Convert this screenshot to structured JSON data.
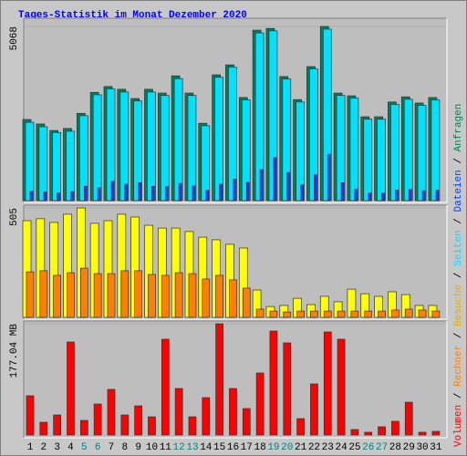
{
  "chart_data": {
    "type": "bar",
    "title": "Tages-Statistik im Monat Dezember 2020",
    "categories": [
      "1",
      "2",
      "3",
      "4",
      "5",
      "6",
      "7",
      "8",
      "9",
      "10",
      "11",
      "12",
      "13",
      "14",
      "15",
      "16",
      "17",
      "18",
      "19",
      "20",
      "21",
      "22",
      "23",
      "24",
      "25",
      "26",
      "27",
      "28",
      "29",
      "30",
      "31"
    ],
    "weekend_indices": [
      4,
      5,
      11,
      12,
      18,
      19,
      25,
      26
    ],
    "weekend_color": "#008080",
    "legend_separator": " / ",
    "panels": [
      {
        "ylim": [
          0,
          5068
        ],
        "yticks": [
          5068
        ],
        "series": [
          {
            "name": "Anfragen",
            "color": "#00805c",
            "values": [
              2360,
              2230,
              2040,
              2100,
              2540,
              3150,
              3320,
              3240,
              2970,
              3240,
              3130,
              3630,
              3130,
              2250,
              3660,
              3950,
              3000,
              4960,
              5010,
              3610,
              2940,
              3900,
              5068,
              3130,
              3050,
              2440,
              2440,
              2870,
              3020,
              2840,
              3000
            ]
          },
          {
            "name": "Dateien",
            "color": "#0040ff",
            "values": [
              280,
              250,
              230,
              260,
              420,
              380,
              560,
              480,
              520,
              420,
              410,
              500,
              430,
              300,
              480,
              620,
              530,
              900,
              1250,
              820,
              460,
              760,
              1350,
              520,
              340,
              230,
              220,
              310,
              330,
              290,
              300
            ]
          },
          {
            "name": "Seiten",
            "color": "#00e0ff",
            "values": [
              2280,
              2150,
              1980,
              2020,
              2470,
              3080,
              3250,
              3160,
              2900,
              3160,
              3060,
              3550,
              3060,
              2180,
              3590,
              3880,
              2930,
              4880,
              4940,
              3540,
              2870,
              3830,
              4990,
              3060,
              2980,
              2370,
              2370,
              2800,
              2950,
              2770,
              2930
            ]
          }
        ]
      },
      {
        "ylim": [
          0,
          505
        ],
        "yticks": [
          505
        ],
        "series": [
          {
            "name": "Besuche",
            "color": "#ffff00",
            "values": [
              446,
              455,
              438,
              476,
              505,
              434,
              446,
              476,
              463,
              425,
              412,
              412,
              396,
              370,
              358,
              337,
              320,
              126,
              50,
              55,
              88,
              59,
              97,
              72,
              130,
              109,
              97,
              118,
              105,
              55,
              55
            ]
          },
          {
            "name": "Rechner",
            "color": "#ff8000",
            "values": [
              210,
              215,
              194,
              206,
              227,
              202,
              202,
              215,
              215,
              198,
              194,
              206,
              202,
              177,
              194,
              173,
              135,
              38,
              29,
              25,
              29,
              29,
              29,
              29,
              29,
              29,
              29,
              34,
              38,
              34,
              29
            ]
          }
        ]
      },
      {
        "ylim": [
          0,
          177.04
        ],
        "yticks": [
          {
            "value": 177.04,
            "label": "177.04 MB"
          }
        ],
        "series": [
          {
            "name": "Volumen",
            "color": "#ff0000",
            "values": [
              62.4,
              20.3,
              31.9,
              148,
              23.2,
              49.3,
              72.6,
              31.9,
              46.4,
              29,
              152.4,
              74,
              29,
              59.5,
              177.04,
              74,
              42.1,
              98.7,
              165.4,
              146.6,
              26.1,
              81.3,
              164,
              152.4,
              8.7,
              4.4,
              13.1,
              21.8,
              52.2,
              4.4,
              5.8
            ]
          }
        ]
      }
    ]
  }
}
